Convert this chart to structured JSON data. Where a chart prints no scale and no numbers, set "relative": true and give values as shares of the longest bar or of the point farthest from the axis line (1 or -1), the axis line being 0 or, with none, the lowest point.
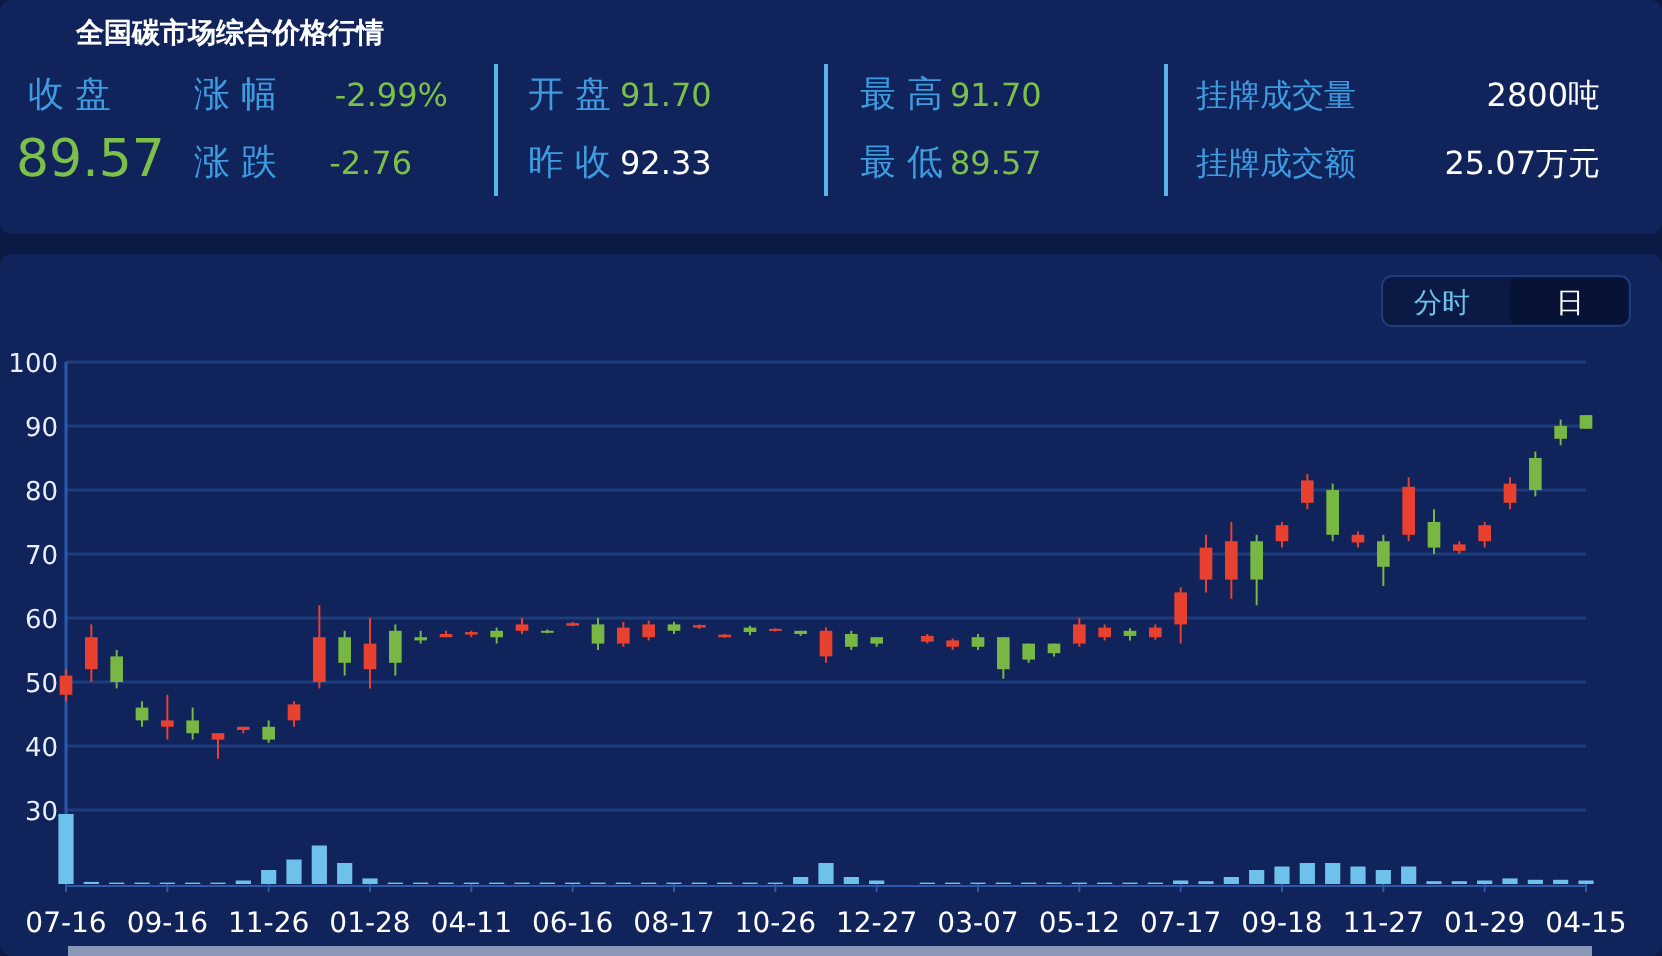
{
  "chart_data": [
    {
      "type": "other",
      "title": "全国碳市场综合价格行情",
      "annotations": [
        "收 盘",
        "89.57",
        "涨 幅",
        "-2.99%",
        "涨 跌",
        "-2.76",
        "开 盘",
        "91.70",
        "昨 收",
        "92.33",
        "最 高",
        "91.70",
        "最 低",
        "89.57",
        "挂牌成交量",
        "2800吨",
        "挂牌成交额",
        "25.07万元"
      ]
    },
    {
      "type": "candlestick",
      "categories": [
        "07-16",
        null,
        null,
        null,
        "09-16",
        null,
        null,
        null,
        "11-26",
        null,
        null,
        null,
        "01-28",
        null,
        null,
        null,
        "04-11",
        null,
        null,
        null,
        "06-16",
        null,
        null,
        null,
        "08-17",
        null,
        null,
        null,
        "10-26",
        null,
        null,
        null,
        "12-27",
        null,
        null,
        null,
        "03-07",
        null,
        null,
        null,
        "05-12",
        null,
        null,
        null,
        "07-17",
        null,
        null,
        null,
        "09-18",
        null,
        null,
        null,
        "11-27",
        null,
        null,
        null,
        "01-29",
        null,
        null,
        null,
        "04-15"
      ],
      "ohlc": [
        [
          48,
          52,
          47,
          51
        ],
        [
          52,
          59,
          50,
          57
        ],
        [
          54,
          55,
          49,
          50
        ],
        [
          46,
          47,
          43,
          44
        ],
        [
          43,
          48,
          41,
          44
        ],
        [
          44,
          46,
          41,
          42
        ],
        [
          41,
          42,
          38,
          42
        ],
        [
          42.5,
          43,
          42,
          43
        ],
        [
          43,
          44,
          40.5,
          41
        ],
        [
          44,
          47,
          43,
          46.5
        ],
        [
          50,
          62,
          49,
          57
        ],
        [
          57,
          58,
          51,
          53
        ],
        [
          52,
          60,
          49,
          56
        ],
        [
          58,
          59,
          51,
          53
        ],
        [
          57,
          58,
          56,
          56.5
        ],
        [
          57,
          58,
          57,
          57.5
        ],
        [
          57.4,
          58,
          57,
          57.8
        ],
        [
          58,
          58.5,
          56,
          57
        ],
        [
          58,
          60,
          57.5,
          59
        ],
        [
          58,
          58.2,
          57.6,
          57.8
        ],
        [
          58.8,
          59.4,
          58.7,
          59.2
        ],
        [
          59,
          60,
          55,
          56
        ],
        [
          56,
          59.4,
          55.5,
          58.5
        ],
        [
          57,
          59.6,
          56.5,
          59
        ],
        [
          59,
          59.4,
          57.5,
          58
        ],
        [
          58.5,
          59,
          58.3,
          58.9
        ],
        [
          57,
          57.5,
          56.9,
          57.4
        ],
        [
          58.5,
          58.8,
          57.3,
          57.8
        ],
        [
          58,
          58.4,
          57.9,
          58.3
        ],
        [
          58,
          58,
          57.2,
          57.5
        ],
        [
          54,
          58.5,
          53,
          58
        ],
        [
          57.5,
          58,
          55,
          55.5
        ],
        [
          57,
          57,
          55.5,
          56
        ],
        null,
        [
          56.3,
          57.5,
          56,
          57.2
        ],
        [
          55.5,
          56.8,
          55,
          56.5
        ],
        [
          57,
          57.5,
          55,
          55.5
        ],
        [
          57,
          57,
          50.5,
          52
        ],
        [
          56,
          56,
          53,
          53.5
        ],
        [
          56,
          56,
          54,
          54.5
        ],
        [
          56,
          60,
          55.5,
          59
        ],
        [
          57,
          59,
          56.5,
          58.5
        ],
        [
          58,
          58.4,
          56.5,
          57.2
        ],
        [
          57,
          59,
          56.6,
          58.5
        ],
        [
          59,
          64.8,
          56,
          64
        ],
        [
          66,
          73,
          64,
          71
        ],
        [
          66,
          75,
          63,
          72
        ],
        [
          72,
          73,
          62,
          66
        ],
        [
          72,
          75,
          71,
          74.5
        ],
        [
          78,
          82.5,
          77,
          81.5
        ],
        [
          80,
          81,
          72,
          73
        ],
        [
          71.8,
          73.5,
          71,
          73
        ],
        [
          72,
          73,
          65,
          68
        ],
        [
          73,
          82,
          72,
          80.5
        ],
        [
          75,
          77,
          70,
          71
        ],
        [
          70.5,
          72,
          70,
          71.5
        ],
        [
          72,
          75,
          71,
          74.5
        ],
        [
          78,
          82,
          77,
          81
        ],
        [
          85,
          86,
          79,
          80
        ],
        [
          90,
          91,
          87,
          88
        ],
        [
          91.7,
          91.7,
          89.57,
          89.57
        ]
      ],
      "ylim": [
        30,
        100
      ],
      "yticks": [
        30,
        40,
        50,
        60,
        70,
        80,
        90,
        100
      ],
      "grid": "y",
      "annotations": [
        "分时",
        "日"
      ]
    },
    {
      "type": "bar",
      "relative": true,
      "color": "#6ec1ea",
      "categories": [
        null,
        null,
        null,
        null,
        null,
        null,
        null,
        null,
        null,
        null,
        null,
        null,
        null,
        null,
        null,
        null,
        null,
        null,
        null,
        null,
        null,
        null,
        null,
        null,
        null,
        null,
        null,
        null,
        null,
        null,
        null,
        null,
        null,
        null,
        null,
        null,
        null,
        null,
        null,
        null,
        null,
        null,
        null,
        null,
        null,
        null,
        null,
        null,
        null,
        null,
        null,
        null,
        null,
        null,
        null,
        null,
        null,
        null,
        null,
        null,
        null
      ],
      "values": [
        1,
        0.03,
        0.02,
        0.02,
        0.02,
        0.02,
        0.02,
        0.05,
        0.2,
        0.35,
        0.55,
        0.3,
        0.08,
        0.02,
        0.02,
        0.02,
        0.02,
        0.02,
        0.02,
        0.02,
        0.02,
        0.02,
        0.02,
        0.02,
        0.02,
        0.02,
        0.02,
        0.02,
        0.02,
        0.1,
        0.3,
        0.1,
        0.05,
        0,
        0.02,
        0.02,
        0.02,
        0.02,
        0.02,
        0.02,
        0.02,
        0.02,
        0.02,
        0.02,
        0.05,
        0.04,
        0.1,
        0.2,
        0.25,
        0.3,
        0.3,
        0.25,
        0.2,
        0.25,
        0.04,
        0.04,
        0.05,
        0.08,
        0.06,
        0.06,
        0.05
      ]
    }
  ]
}
